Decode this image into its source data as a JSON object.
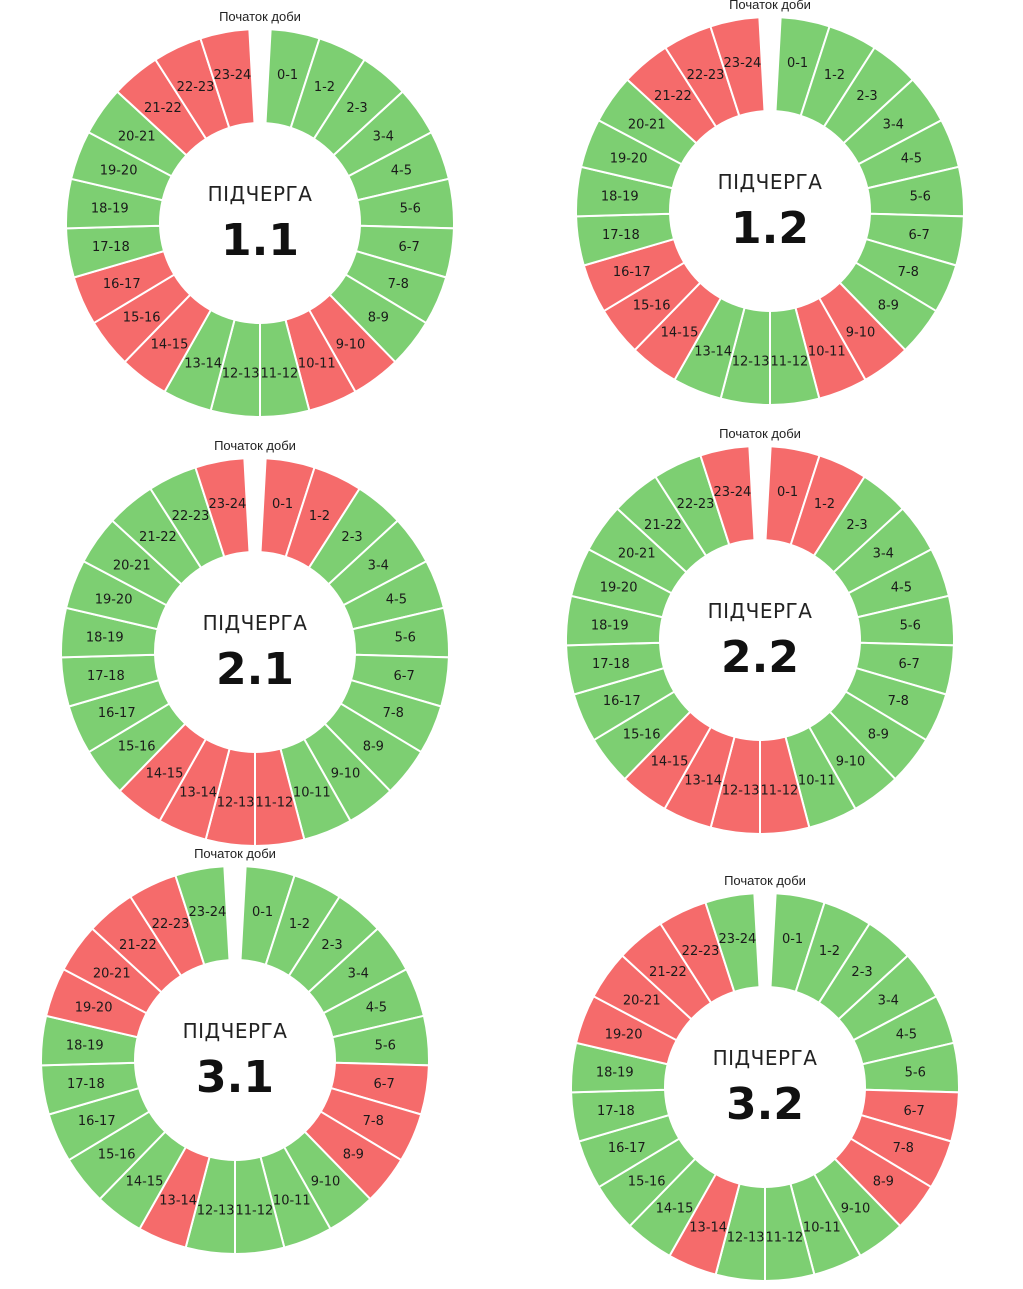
{
  "day_start_label": "Початок доби",
  "queue_word": "ПІДЧЕРГА",
  "colors": {
    "power_on": "#7dcf72",
    "power_off": "#f56b6b",
    "separator": "#ffffff"
  },
  "hour_labels": [
    "0-1",
    "1-2",
    "2-3",
    "3-4",
    "4-5",
    "5-6",
    "6-7",
    "7-8",
    "8-9",
    "9-10",
    "10-11",
    "11-12",
    "12-13",
    "13-14",
    "14-15",
    "15-16",
    "16-17",
    "17-18",
    "18-19",
    "19-20",
    "20-21",
    "21-22",
    "22-23",
    "23-24"
  ],
  "schedules": [
    {
      "queue": "1.1",
      "off_hours": [
        9,
        10,
        14,
        15,
        16,
        21,
        22,
        23
      ]
    },
    {
      "queue": "1.2",
      "off_hours": [
        9,
        10,
        14,
        15,
        16,
        21,
        22,
        23
      ]
    },
    {
      "queue": "2.1",
      "off_hours": [
        0,
        1,
        11,
        12,
        13,
        14,
        23
      ]
    },
    {
      "queue": "2.2",
      "off_hours": [
        0,
        1,
        11,
        12,
        13,
        14,
        23
      ]
    },
    {
      "queue": "3.1",
      "off_hours": [
        6,
        7,
        8,
        13,
        19,
        20,
        21,
        22
      ]
    },
    {
      "queue": "3.2",
      "off_hours": [
        6,
        7,
        8,
        13,
        19,
        20,
        21,
        22
      ]
    }
  ]
}
